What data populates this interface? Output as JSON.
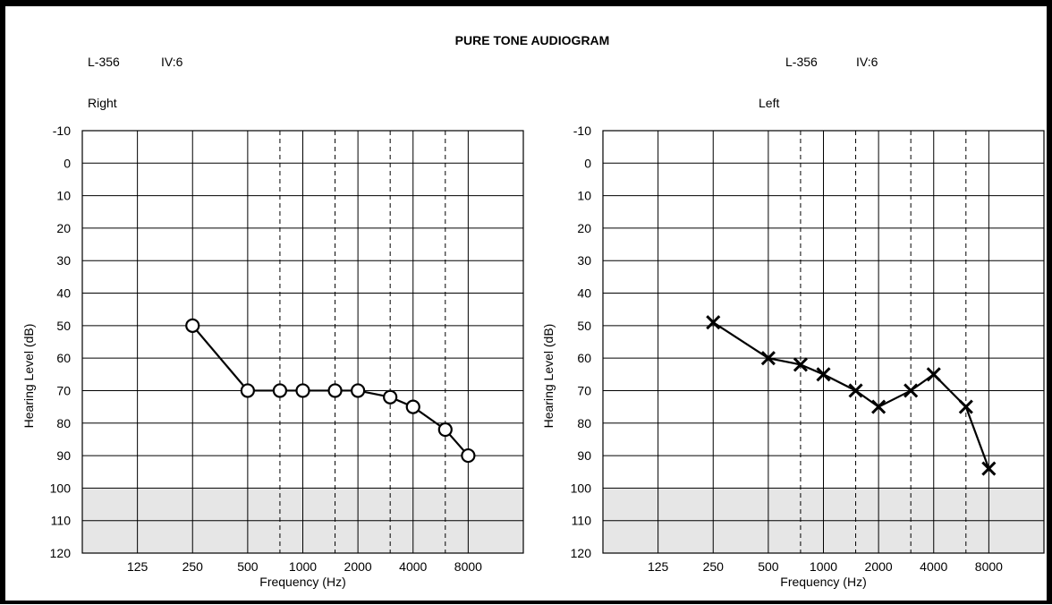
{
  "title": "PURE TONE AUDIOGRAM",
  "chart_data": [
    {
      "type": "line",
      "panel_header": {
        "code": "L-356",
        "info": "IV:6"
      },
      "side": "Right",
      "ear": "right",
      "marker": "circle",
      "xlabel": "Frequency (Hz)",
      "ylabel": "Hearing Level (dB)",
      "x_tick_labels": [
        "125",
        "250",
        "500",
        "1000",
        "2000",
        "4000",
        "8000"
      ],
      "y_tick_labels": [
        "-10",
        "0",
        "10",
        "20",
        "30",
        "40",
        "50",
        "60",
        "70",
        "80",
        "90",
        "100",
        "110",
        "120"
      ],
      "ylim": [
        -10,
        120
      ],
      "y_inverted": true,
      "x_scale": "log2",
      "grid": true,
      "dashed_gridlines_hz": [
        750,
        1500,
        3000,
        6000
      ],
      "shaded_region_db": [
        100,
        120
      ],
      "shaded_color": "#e6e6e6",
      "series": [
        {
          "x": [
            250,
            500,
            750,
            1000,
            1500,
            2000,
            3000,
            4000,
            6000,
            8000
          ],
          "y": [
            50,
            70,
            70,
            70,
            70,
            70,
            72,
            75,
            82,
            90
          ]
        }
      ]
    },
    {
      "type": "line",
      "panel_header": {
        "code": "L-356",
        "info": "IV:6"
      },
      "side": "Left",
      "ear": "left",
      "marker": "x",
      "xlabel": "Frequency (Hz)",
      "ylabel": "Hearing Level (dB)",
      "x_tick_labels": [
        "125",
        "250",
        "500",
        "1000",
        "2000",
        "4000",
        "8000"
      ],
      "y_tick_labels": [
        "-10",
        "0",
        "10",
        "20",
        "30",
        "40",
        "50",
        "60",
        "70",
        "80",
        "90",
        "100",
        "110",
        "120"
      ],
      "ylim": [
        -10,
        120
      ],
      "y_inverted": true,
      "x_scale": "log2",
      "grid": true,
      "dashed_gridlines_hz": [
        750,
        1500,
        3000,
        6000
      ],
      "shaded_region_db": [
        100,
        120
      ],
      "shaded_color": "#e6e6e6",
      "series": [
        {
          "x": [
            250,
            500,
            750,
            1000,
            1500,
            2000,
            3000,
            4000,
            6000,
            8000
          ],
          "y": [
            49,
            60,
            62,
            65,
            70,
            75,
            70,
            65,
            75,
            94
          ]
        }
      ]
    }
  ]
}
